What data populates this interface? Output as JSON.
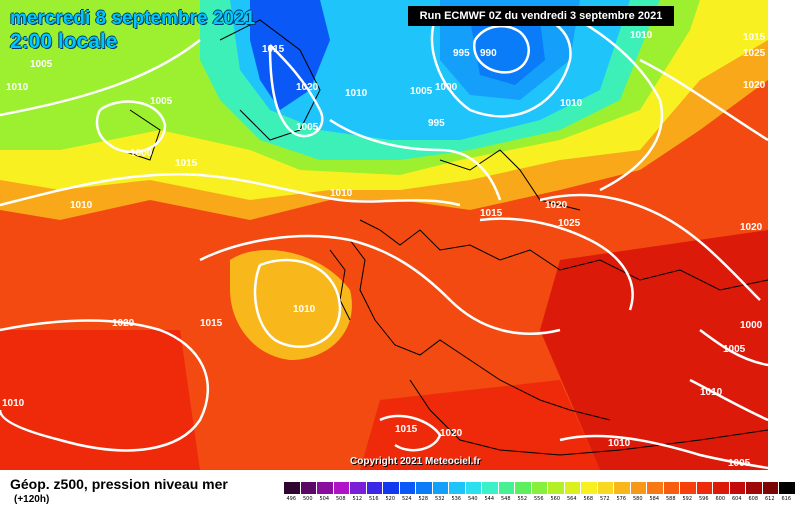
{
  "header": {
    "date": "mercredi 8 septembre 2021",
    "local_time": "2:00 locale",
    "run_info": "Run ECMWF 0Z du vendredi 3 septembre 2021"
  },
  "footer": {
    "title": "Géop. z500, pression niveau mer",
    "lead_time": "(+120h)",
    "copyright": "Copyright 2021 Meteociel.fr"
  },
  "legend": {
    "labels": [
      "496",
      "500",
      "504",
      "508",
      "512",
      "516",
      "520",
      "524",
      "528",
      "532",
      "536",
      "540",
      "544",
      "548",
      "552",
      "556",
      "560",
      "564",
      "568",
      "572",
      "576",
      "580",
      "584",
      "588",
      "592",
      "596",
      "600",
      "604",
      "608",
      "612",
      "616"
    ],
    "colors": [
      "#2e0630",
      "#5a0a66",
      "#8a0e9e",
      "#b012c8",
      "#7a1ed8",
      "#3a28e6",
      "#1238f0",
      "#0a58f6",
      "#0a7cf8",
      "#14a0fa",
      "#1ec4fa",
      "#2ce0f0",
      "#3cf0c8",
      "#48f094",
      "#5cf060",
      "#86f03c",
      "#b4f028",
      "#dcf020",
      "#f8f020",
      "#f8d820",
      "#f8b81c",
      "#f89818",
      "#f87814",
      "#f85c10",
      "#f8400c",
      "#ee2a0a",
      "#dc1a0a",
      "#c40a0a",
      "#a00808",
      "#7c0606",
      "#000000"
    ]
  },
  "isobars": [
    {
      "label": "1015",
      "kind": "pressure"
    },
    {
      "label": "1005",
      "kind": "pressure"
    },
    {
      "label": "1010",
      "kind": "pressure"
    },
    {
      "label": "1005",
      "kind": "pressure"
    },
    {
      "label": "1000",
      "kind": "pressure"
    },
    {
      "label": "1015",
      "kind": "pressure"
    },
    {
      "label": "1010",
      "kind": "pressure"
    },
    {
      "label": "1020",
      "kind": "pressure"
    },
    {
      "label": "1005",
      "kind": "pressure"
    },
    {
      "label": "1010",
      "kind": "pressure"
    },
    {
      "label": "995",
      "kind": "pressure"
    },
    {
      "label": "990",
      "kind": "pressure"
    },
    {
      "label": "1005",
      "kind": "pressure"
    },
    {
      "label": "1000",
      "kind": "pressure"
    },
    {
      "label": "995",
      "kind": "pressure"
    },
    {
      "label": "1010",
      "kind": "pressure"
    },
    {
      "label": "1010",
      "kind": "pressure"
    },
    {
      "label": "1010",
      "kind": "pressure"
    },
    {
      "label": "1015",
      "kind": "pressure"
    },
    {
      "label": "1020",
      "kind": "pressure"
    },
    {
      "label": "1025",
      "kind": "pressure"
    },
    {
      "label": "1015",
      "kind": "pressure"
    },
    {
      "label": "1025",
      "kind": "pressure"
    },
    {
      "label": "1020",
      "kind": "pressure"
    },
    {
      "label": "1020",
      "kind": "pressure"
    },
    {
      "label": "1015",
      "kind": "pressure"
    },
    {
      "label": "1010",
      "kind": "pressure"
    },
    {
      "label": "1000",
      "kind": "pressure"
    },
    {
      "label": "1005",
      "kind": "pressure"
    },
    {
      "label": "1010",
      "kind": "pressure"
    },
    {
      "label": "1020",
      "kind": "pressure"
    },
    {
      "label": "1015",
      "kind": "pressure"
    },
    {
      "label": "1020",
      "kind": "pressure"
    },
    {
      "label": "1010",
      "kind": "pressure"
    },
    {
      "label": "1005",
      "kind": "pressure"
    },
    {
      "label": "1010",
      "kind": "pressure"
    }
  ]
}
